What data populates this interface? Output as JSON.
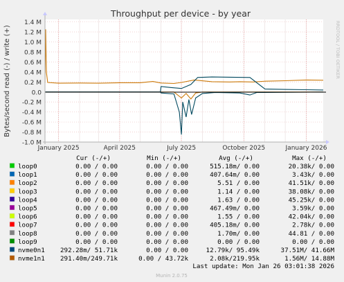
{
  "chart_data": {
    "type": "line",
    "title": "Throughput per device - by year",
    "ylabel": "Bytes/second read (-) / write (+)",
    "side_label": "RRDTOOL / TOBI OETIKER",
    "ylim": [
      -1000000,
      1450000
    ],
    "y_ticks": [
      {
        "value": 1400000,
        "label": "1.4 M"
      },
      {
        "value": 1200000,
        "label": "1.2 M"
      },
      {
        "value": 1000000,
        "label": "1.0 M"
      },
      {
        "value": 800000,
        "label": "0.8 M"
      },
      {
        "value": 600000,
        "label": "0.6 M"
      },
      {
        "value": 400000,
        "label": "0.4 M"
      },
      {
        "value": 200000,
        "label": "0.2 M"
      },
      {
        "value": 0,
        "label": "0.0"
      },
      {
        "value": -200000,
        "label": "-0.2 M"
      },
      {
        "value": -400000,
        "label": "-0.4 M"
      },
      {
        "value": -600000,
        "label": "-0.6 M"
      },
      {
        "value": -800000,
        "label": "-0.8 M"
      },
      {
        "value": -1000000,
        "label": "-1.0 M"
      }
    ],
    "xlim": [
      "2024-12-12",
      "2026-01-26"
    ],
    "x_ticks": [
      {
        "date": "2025-01-01",
        "label": "January 2025"
      },
      {
        "date": "2025-04-01",
        "label": "April 2025"
      },
      {
        "date": "2025-07-01",
        "label": "July 2025"
      },
      {
        "date": "2025-10-01",
        "label": "October 2025"
      },
      {
        "date": "2026-01-01",
        "label": "January 2026"
      }
    ],
    "series": [
      {
        "name": "nvme1n1",
        "color": "#cc7a0a",
        "write": [
          [
            "2024-12-12",
            180000
          ],
          [
            "2024-12-13",
            1250000
          ],
          [
            "2024-12-14",
            400000
          ],
          [
            "2024-12-16",
            190000
          ],
          [
            "2025-01-01",
            175000
          ],
          [
            "2025-02-01",
            180000
          ],
          [
            "2025-03-01",
            175000
          ],
          [
            "2025-04-01",
            185000
          ],
          [
            "2025-05-01",
            185000
          ],
          [
            "2025-05-20",
            210000
          ],
          [
            "2025-06-01",
            180000
          ],
          [
            "2025-06-20",
            170000
          ],
          [
            "2025-07-01",
            190000
          ],
          [
            "2025-07-20",
            240000
          ],
          [
            "2025-08-15",
            205000
          ],
          [
            "2025-09-10",
            200000
          ],
          [
            "2025-09-25",
            205000
          ],
          [
            "2025-10-15",
            200000
          ],
          [
            "2025-11-01",
            215000
          ],
          [
            "2025-12-01",
            225000
          ],
          [
            "2026-01-01",
            240000
          ],
          [
            "2026-01-26",
            235000
          ]
        ],
        "read": [
          [
            "2024-12-12",
            0
          ],
          [
            "2025-06-20",
            0
          ],
          [
            "2025-07-01",
            -120000
          ],
          [
            "2025-07-08",
            -30000
          ],
          [
            "2025-07-15",
            -140000
          ],
          [
            "2025-07-22",
            -20000
          ],
          [
            "2025-08-01",
            0
          ],
          [
            "2026-01-26",
            0
          ]
        ]
      },
      {
        "name": "nvme0n1",
        "color": "#00485e",
        "write": [
          [
            "2024-12-12",
            0
          ],
          [
            "2025-05-31",
            0
          ],
          [
            "2025-06-01",
            110000
          ],
          [
            "2025-06-15",
            90000
          ],
          [
            "2025-07-01",
            70000
          ],
          [
            "2025-07-15",
            150000
          ],
          [
            "2025-07-25",
            290000
          ],
          [
            "2025-08-15",
            300000
          ],
          [
            "2025-09-10",
            295000
          ],
          [
            "2025-10-10",
            290000
          ],
          [
            "2025-11-01",
            60000
          ],
          [
            "2025-12-01",
            50000
          ],
          [
            "2026-01-01",
            45000
          ],
          [
            "2026-01-26",
            40000
          ]
        ],
        "read": [
          [
            "2024-12-12",
            0
          ],
          [
            "2025-05-31",
            0
          ],
          [
            "2025-06-01",
            -20000
          ],
          [
            "2025-06-20",
            -40000
          ],
          [
            "2025-06-28",
            -400000
          ],
          [
            "2025-07-01",
            -850000
          ],
          [
            "2025-07-03",
            -200000
          ],
          [
            "2025-07-08",
            -500000
          ],
          [
            "2025-07-12",
            -150000
          ],
          [
            "2025-07-16",
            -450000
          ],
          [
            "2025-07-22",
            -120000
          ],
          [
            "2025-08-01",
            -30000
          ],
          [
            "2025-08-20",
            -10000
          ],
          [
            "2025-09-25",
            -20000
          ],
          [
            "2025-10-10",
            -60000
          ],
          [
            "2025-10-20",
            -10000
          ],
          [
            "2026-01-26",
            0
          ]
        ]
      }
    ],
    "grid": true
  },
  "legend": {
    "headers": {
      "cur": "Cur (-/+)",
      "min": "Min (-/+)",
      "avg": "Avg (-/+)",
      "max": "Max (-/+)"
    },
    "rows": [
      {
        "name": "loop0",
        "color": "#00cc00",
        "cur": "0.00 /  0.00",
        "min": "0.00 /  0.00",
        "avg": "515.18m/  0.00",
        "max": "20.38k/  0.00"
      },
      {
        "name": "loop1",
        "color": "#0066b3",
        "cur": "0.00 /  0.00",
        "min": "0.00 /  0.00",
        "avg": "407.64m/  0.00",
        "max": "3.43k/  0.00"
      },
      {
        "name": "loop2",
        "color": "#ff8000",
        "cur": "0.00 /  0.00",
        "min": "0.00 /  0.00",
        "avg": "5.51 /  0.00",
        "max": "41.51k/  0.00"
      },
      {
        "name": "loop3",
        "color": "#ffcc00",
        "cur": "0.00 /  0.00",
        "min": "0.00 /  0.00",
        "avg": "1.14 /  0.00",
        "max": "38.08k/  0.00"
      },
      {
        "name": "loop4",
        "color": "#330099",
        "cur": "0.00 /  0.00",
        "min": "0.00 /  0.00",
        "avg": "1.63 /  0.00",
        "max": "45.25k/  0.00"
      },
      {
        "name": "loop5",
        "color": "#990099",
        "cur": "0.00 /  0.00",
        "min": "0.00 /  0.00",
        "avg": "467.49m/  0.00",
        "max": "3.59k/  0.00"
      },
      {
        "name": "loop6",
        "color": "#ccff00",
        "cur": "0.00 /  0.00",
        "min": "0.00 /  0.00",
        "avg": "1.55 /  0.00",
        "max": "42.04k/  0.00"
      },
      {
        "name": "loop7",
        "color": "#ff0000",
        "cur": "0.00 /  0.00",
        "min": "0.00 /  0.00",
        "avg": "405.18m/  0.00",
        "max": "2.78k/  0.00"
      },
      {
        "name": "loop8",
        "color": "#808080",
        "cur": "0.00 /  0.00",
        "min": "0.00 /  0.00",
        "avg": "1.70m/  0.00",
        "max": "44.81 /  0.00"
      },
      {
        "name": "loop9",
        "color": "#008f00",
        "cur": "0.00 /  0.00",
        "min": "0.00 /  0.00",
        "avg": "0.00 /  0.00",
        "max": "0.00 /  0.00"
      },
      {
        "name": "nvme0n1",
        "color": "#00487d",
        "cur": "292.28m/ 51.71k",
        "min": "0.00 /  0.00",
        "avg": "12.79k/ 95.49k",
        "max": "37.51M/ 41.66M"
      },
      {
        "name": "nvme1n1",
        "color": "#b35a00",
        "cur": "291.40m/249.71k",
        "min": "0.00 / 43.72k",
        "avg": "2.08k/219.95k",
        "max": "1.56M/ 14.88M"
      }
    ]
  },
  "last_update": "Last update: Mon Jan 26 03:01:38 2026",
  "footer": "Munin 2.0.75"
}
